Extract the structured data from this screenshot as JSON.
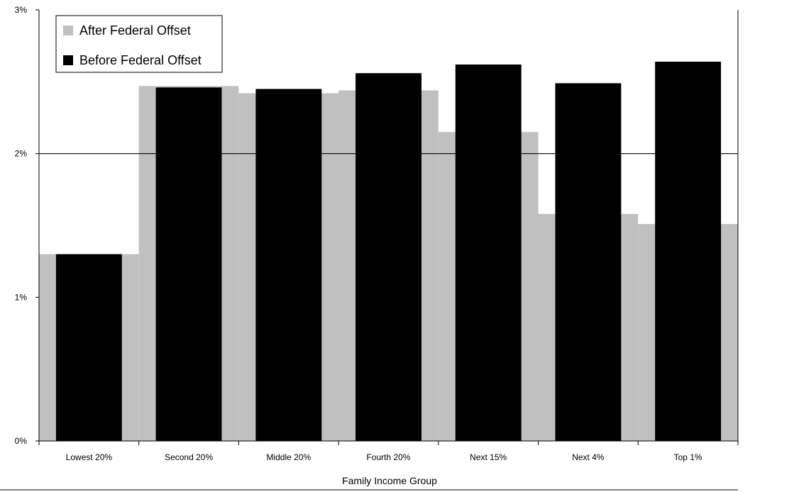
{
  "chart_data": {
    "type": "bar",
    "title": "",
    "xlabel": "Family Income Group",
    "ylabel": "",
    "categories": [
      "Lowest 20%",
      "Second 20%",
      "Middle 20%",
      "Fourth 20%",
      "Next 15%",
      "Next 4%",
      "Top 1%"
    ],
    "series": [
      {
        "name": "After Federal Offset",
        "color": "#c0c0c0",
        "values": [
          1.3,
          2.47,
          2.42,
          2.44,
          2.15,
          1.58,
          1.51
        ]
      },
      {
        "name": "Before Federal Offset",
        "color": "#000000",
        "values": [
          1.3,
          2.46,
          2.45,
          2.56,
          2.62,
          2.49,
          2.64
        ]
      }
    ],
    "ylim": [
      0,
      3
    ],
    "yticks": [
      0,
      1,
      2,
      3
    ],
    "ytick_labels": [
      "0%",
      "1%",
      "2%",
      "3%"
    ],
    "gridlines": [
      2
    ],
    "legend_position": "top-left"
  }
}
